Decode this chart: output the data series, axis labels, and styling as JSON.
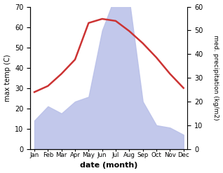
{
  "months": [
    "Jan",
    "Feb",
    "Mar",
    "Apr",
    "May",
    "Jun",
    "Jul",
    "Aug",
    "Sep",
    "Oct",
    "Nov",
    "Dec"
  ],
  "temperature": [
    28,
    31,
    37,
    44,
    62,
    64,
    63,
    58,
    52,
    45,
    37,
    30
  ],
  "precipitation_mm": [
    12,
    18,
    15,
    20,
    22,
    50,
    65,
    63,
    20,
    10,
    9,
    6
  ],
  "temp_color": "#cc3333",
  "precip_fill_color": "#b8bfe8",
  "left_ylim": [
    0,
    70
  ],
  "right_ylim": [
    0,
    60
  ],
  "xlabel": "date (month)",
  "ylabel_left": "max temp (C)",
  "ylabel_right": "med. precipitation (kg/m2)",
  "left_yticks": [
    0,
    10,
    20,
    30,
    40,
    50,
    60,
    70
  ],
  "right_yticks": [
    0,
    10,
    20,
    30,
    40,
    50,
    60
  ],
  "figsize": [
    3.18,
    2.47
  ],
  "dpi": 100
}
